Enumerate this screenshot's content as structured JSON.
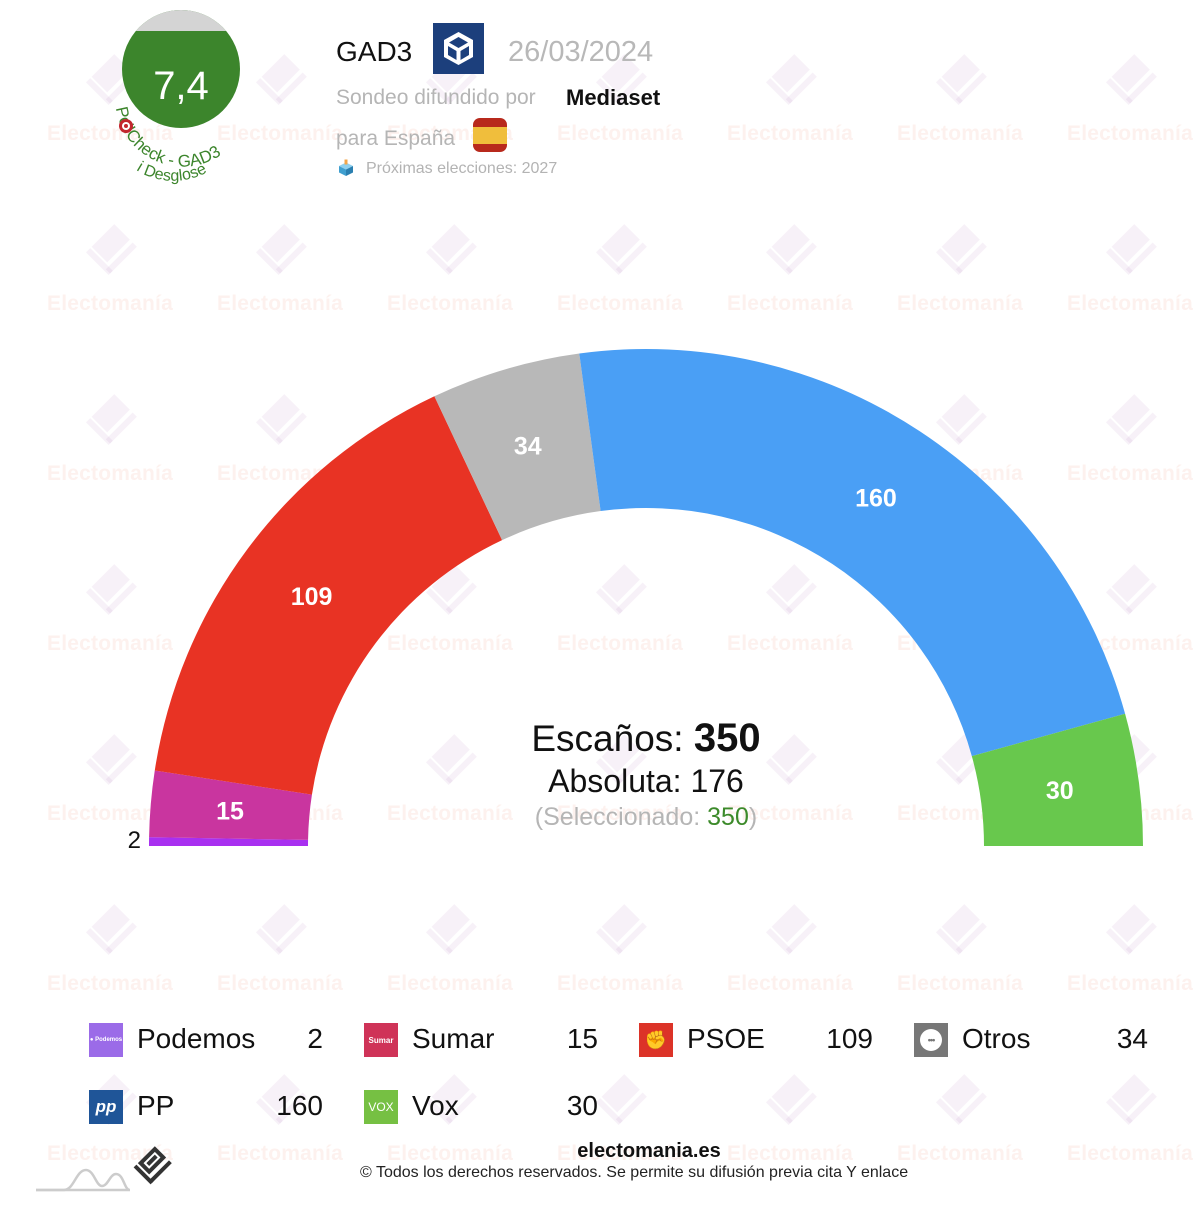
{
  "badge": {
    "score": "7,4",
    "arc_label": "PollCheck - GAD3",
    "breakdown_label": "Desglose",
    "info_icon": "info-icon",
    "score_color": "#3c852c"
  },
  "header": {
    "pollster": "GAD3",
    "pollster_logo_icon": "cube-icon",
    "date": "26/03/2024",
    "sponsor_prefix": "Sondeo difundido por",
    "sponsor": "Mediaset",
    "region_prefix": "para España",
    "flag_icon": "spain-flag-icon",
    "next_elections": "Próximas elecciones: 2027",
    "ballot_icon": "ballot-box-icon"
  },
  "watermark": {
    "text": "Electomanía"
  },
  "center": {
    "seats_label": "Escaños:",
    "seats_total": "350",
    "majority_label": "Absoluta:",
    "majority_value": "176",
    "selected_prefix": "(Seleccionado:",
    "selected_value": "350",
    "selected_suffix": ")"
  },
  "chart_data": {
    "type": "pie",
    "subtype": "parliament-semicircle",
    "title": "Escaños: 350",
    "total": 350,
    "majority": 176,
    "categories": [
      "Podemos",
      "Sumar",
      "PSOE",
      "Otros",
      "PP",
      "Vox"
    ],
    "values": [
      2,
      15,
      109,
      34,
      160,
      30
    ],
    "colors": [
      "#a830f0",
      "#c9359f",
      "#e83324",
      "#b8b8b8",
      "#4a9ff5",
      "#68c84d"
    ],
    "legend_position": "bottom"
  },
  "legend": [
    {
      "name": "Podemos",
      "value": "2",
      "logo_color": "#9b6be8",
      "logo_text": "● Podemos",
      "logo_icon": "podemos-logo-icon"
    },
    {
      "name": "Sumar",
      "value": "15",
      "logo_color": "#cf3358",
      "logo_text": "Sumar",
      "logo_icon": "sumar-logo-icon"
    },
    {
      "name": "PSOE",
      "value": "109",
      "logo_color": "#dc3328",
      "logo_text": "✊",
      "logo_icon": "psoe-logo-icon"
    },
    {
      "name": "Otros",
      "value": "34",
      "logo_color": "#777777",
      "logo_text": "•••",
      "logo_icon": "others-logo-icon"
    },
    {
      "name": "PP",
      "value": "160",
      "logo_color": "#1f5598",
      "logo_text": "pp",
      "logo_icon": "pp-logo-icon"
    },
    {
      "name": "Vox",
      "value": "30",
      "logo_color": "#76c043",
      "logo_text": "VOX",
      "logo_icon": "vox-logo-icon"
    }
  ],
  "footer": {
    "site": "electomania.es",
    "copyright": "© Todos los derechos reservados. Se permite su difusión previa cita Y enlace"
  }
}
